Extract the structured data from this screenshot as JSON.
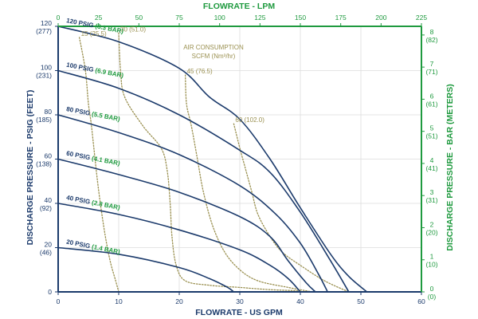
{
  "colors": {
    "navy": "#1b3a6b",
    "green": "#1f9a3f",
    "olive": "#9a9050",
    "grid": "#dcdcdc"
  },
  "chart_data": {
    "type": "line",
    "title": "",
    "xlabel": "FLOWRATE - US GPM",
    "x2label": "FLOWRATE - LPM",
    "ylabel": "DISCHARGE PRESSURE - PSIG (FEET)",
    "y2label": "DISCHARGE PRESSURE - BAR (METERS)",
    "xlim": [
      0,
      60
    ],
    "x2lim": [
      0,
      225
    ],
    "ylim": [
      0,
      120
    ],
    "y2lim": [
      0,
      8.27
    ],
    "x_ticks": [
      0,
      10,
      20,
      30,
      40,
      50,
      60
    ],
    "x2_ticks": [
      0,
      25,
      50,
      75,
      100,
      125,
      150,
      175,
      200,
      225
    ],
    "y_ticks": [
      {
        "value": 0,
        "psig": "0",
        "feet": ""
      },
      {
        "value": 20,
        "psig": "20",
        "feet": "(46)"
      },
      {
        "value": 40,
        "psig": "40",
        "feet": "(92)"
      },
      {
        "value": 60,
        "psig": "60",
        "feet": "(138)"
      },
      {
        "value": 80,
        "psig": "80",
        "feet": "(185)"
      },
      {
        "value": 100,
        "psig": "100",
        "feet": "(231)"
      },
      {
        "value": 120,
        "psig": "120",
        "feet": "(277)"
      }
    ],
    "y2_ticks": [
      {
        "value": 0,
        "bar": "0",
        "meters": "(0)"
      },
      {
        "value": 1,
        "bar": "1",
        "meters": "(10)"
      },
      {
        "value": 2,
        "bar": "2",
        "meters": "(20)"
      },
      {
        "value": 3,
        "bar": "3",
        "meters": "(31)"
      },
      {
        "value": 4,
        "bar": "4",
        "meters": "(41)"
      },
      {
        "value": 5,
        "bar": "5",
        "meters": "(51)"
      },
      {
        "value": 6,
        "bar": "6",
        "meters": "(61)"
      },
      {
        "value": 7,
        "bar": "7",
        "meters": "(71)"
      },
      {
        "value": 8,
        "bar": "8",
        "meters": "(82)"
      }
    ],
    "grid": true,
    "series": [
      {
        "name": "120 PSIG (8.3 BAR)",
        "psig": "120 PSIG",
        "bar": "(8.3 BAR)",
        "points": [
          [
            0,
            120
          ],
          [
            10,
            113
          ],
          [
            20,
            101
          ],
          [
            25,
            88
          ],
          [
            30,
            78
          ],
          [
            35,
            60
          ],
          [
            40,
            38
          ],
          [
            45,
            17
          ],
          [
            48,
            7
          ],
          [
            51,
            0
          ]
        ]
      },
      {
        "name": "100 PSIG (6.9 BAR)",
        "psig": "100 PSIG",
        "bar": "(6.9 BAR)",
        "points": [
          [
            0,
            100
          ],
          [
            10,
            92
          ],
          [
            20,
            80
          ],
          [
            30,
            64
          ],
          [
            35,
            54
          ],
          [
            40,
            36
          ],
          [
            45,
            14
          ],
          [
            48,
            0
          ]
        ]
      },
      {
        "name": "80 PSIG (5.5 BAR)",
        "psig": "80 PSIG",
        "bar": "(5.5 BAR)",
        "points": [
          [
            0,
            80
          ],
          [
            10,
            72
          ],
          [
            20,
            62
          ],
          [
            30,
            48
          ],
          [
            36,
            35
          ],
          [
            40,
            22
          ],
          [
            43,
            8
          ],
          [
            44.5,
            0
          ]
        ]
      },
      {
        "name": "60 PSIG (4.1 BAR)",
        "psig": "60 PSIG",
        "bar": "(4.1 BAR)",
        "points": [
          [
            0,
            60
          ],
          [
            10,
            53
          ],
          [
            20,
            45
          ],
          [
            30,
            34
          ],
          [
            35,
            25
          ],
          [
            38,
            14
          ],
          [
            41,
            4
          ],
          [
            42.5,
            0
          ]
        ]
      },
      {
        "name": "40 PSIG (2.8 BAR)",
        "psig": "40 PSIG",
        "bar": "(2.8 BAR)",
        "points": [
          [
            0,
            40
          ],
          [
            10,
            35
          ],
          [
            20,
            28
          ],
          [
            30,
            19
          ],
          [
            35,
            12
          ],
          [
            38,
            6
          ],
          [
            40,
            0
          ]
        ]
      },
      {
        "name": "20 PSIG (1.4 BAR)",
        "psig": "20 PSIG",
        "bar": "(1.4 BAR)",
        "points": [
          [
            0,
            20
          ],
          [
            10,
            17
          ],
          [
            20,
            11
          ],
          [
            25,
            6
          ],
          [
            28,
            2
          ],
          [
            29,
            0
          ]
        ]
      }
    ],
    "air_consumption": {
      "title_line1": "AIR CONSUMPTION",
      "title_line2": "SCFM (Nm³/hr)",
      "lines": [
        {
          "label": "15 (25.5)",
          "points": [
            [
              3.5,
              115
            ],
            [
              4.5,
              100
            ],
            [
              5,
              85
            ],
            [
              5.5,
              75
            ],
            [
              6.5,
              50
            ],
            [
              7.5,
              30
            ],
            [
              8.5,
              15
            ],
            [
              9.5,
              5
            ],
            [
              10,
              0
            ]
          ]
        },
        {
          "label": "30 (51.0)",
          "points": [
            [
              10,
              117
            ],
            [
              10.3,
              100
            ],
            [
              11,
              88
            ],
            [
              14,
              75
            ],
            [
              17,
              65
            ],
            [
              18,
              55
            ],
            [
              18.5,
              40
            ],
            [
              18.8,
              25
            ],
            [
              19.5,
              12
            ],
            [
              21,
              5
            ],
            [
              25,
              3
            ],
            [
              30,
              2
            ],
            [
              35,
              1
            ],
            [
              40,
              0.5
            ]
          ]
        },
        {
          "label": "45 (76.5)",
          "points": [
            [
              21,
              98
            ],
            [
              21.2,
              85
            ],
            [
              22,
              75
            ],
            [
              23,
              60
            ],
            [
              24,
              45
            ],
            [
              25.5,
              30
            ],
            [
              27.5,
              18
            ],
            [
              30,
              10
            ],
            [
              33,
              5
            ],
            [
              38,
              2
            ],
            [
              42,
              0
            ]
          ]
        },
        {
          "label": "60 (102.0)",
          "points": [
            [
              29,
              76
            ],
            [
              30,
              65
            ],
            [
              31,
              55
            ],
            [
              32,
              45
            ],
            [
              33,
              35
            ],
            [
              35,
              25
            ],
            [
              37,
              18
            ],
            [
              40,
              12
            ],
            [
              44,
              5
            ],
            [
              48,
              0
            ]
          ]
        }
      ]
    }
  }
}
